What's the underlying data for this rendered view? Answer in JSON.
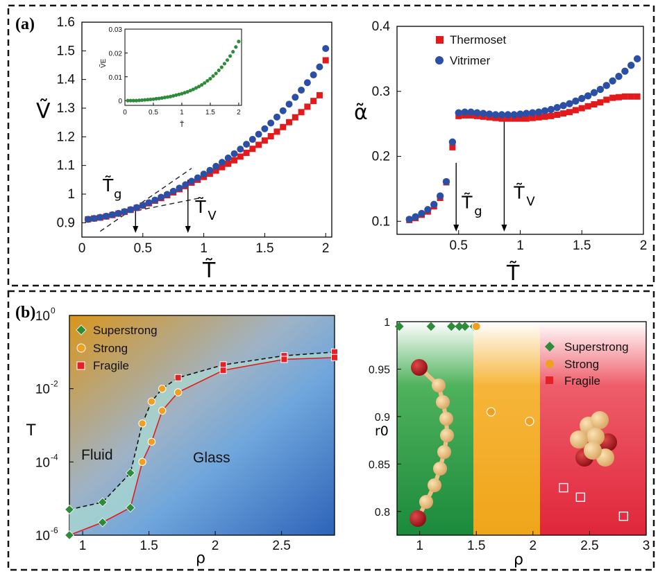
{
  "panels": {
    "a": "(a)",
    "b": "(b)"
  },
  "colors": {
    "thermoset": "#e31a1c",
    "vitrimer": "#2c4fa6",
    "inset": "#2e8b3a",
    "superstrong": "#2e8b3a",
    "strong": "#f0a020",
    "fragile": "#e52126"
  },
  "chart_data": [
    {
      "id": "a-left",
      "type": "scatter",
      "xlabel": "T̃",
      "ylabel": "Ṽ",
      "xlim": [
        0,
        2.05
      ],
      "ylim": [
        0.85,
        1.6
      ],
      "xticks": [
        "0",
        "0.5",
        "1",
        "1.5",
        "2"
      ],
      "yticks": [
        "0.9",
        "1",
        "1.1",
        "1.2",
        "1.3",
        "1.4",
        "1.5",
        "1.6"
      ],
      "annotations": {
        "tg": "T̃",
        "tg_sub": "g",
        "tv": "T̃",
        "tv_sub": "V",
        "tg_x": 0.44,
        "tv_x": 0.87
      },
      "series": [
        {
          "key": "thermoset",
          "values_x": [
            0.05,
            0.1,
            0.15,
            0.2,
            0.25,
            0.3,
            0.35,
            0.4,
            0.45,
            0.5,
            0.55,
            0.6,
            0.65,
            0.7,
            0.75,
            0.8,
            0.85,
            0.9,
            0.95,
            1.0,
            1.05,
            1.1,
            1.15,
            1.2,
            1.25,
            1.3,
            1.35,
            1.4,
            1.45,
            1.5,
            1.55,
            1.6,
            1.65,
            1.7,
            1.75,
            1.8,
            1.85,
            1.9,
            1.95,
            2.0
          ],
          "values_y": [
            0.912,
            0.915,
            0.918,
            0.922,
            0.927,
            0.932,
            0.938,
            0.945,
            0.952,
            0.96,
            0.968,
            0.977,
            0.986,
            0.996,
            1.006,
            1.017,
            1.028,
            1.04,
            1.05,
            1.06,
            1.071,
            1.082,
            1.094,
            1.106,
            1.118,
            1.131,
            1.144,
            1.158,
            1.172,
            1.187,
            1.202,
            1.218,
            1.234,
            1.251,
            1.268,
            1.286,
            1.305,
            1.325,
            1.345,
            1.467
          ]
        },
        {
          "key": "vitrimer",
          "values_x": [
            0.05,
            0.1,
            0.15,
            0.2,
            0.25,
            0.3,
            0.35,
            0.4,
            0.45,
            0.5,
            0.55,
            0.6,
            0.65,
            0.7,
            0.75,
            0.8,
            0.85,
            0.9,
            0.95,
            1.0,
            1.05,
            1.1,
            1.15,
            1.2,
            1.25,
            1.3,
            1.35,
            1.4,
            1.45,
            1.5,
            1.55,
            1.6,
            1.65,
            1.7,
            1.75,
            1.8,
            1.85,
            1.9,
            1.95,
            2.0
          ],
          "values_y": [
            0.912,
            0.915,
            0.919,
            0.923,
            0.928,
            0.933,
            0.939,
            0.946,
            0.953,
            0.961,
            0.97,
            0.979,
            0.989,
            0.999,
            1.01,
            1.021,
            1.033,
            1.045,
            1.057,
            1.07,
            1.083,
            1.097,
            1.111,
            1.126,
            1.141,
            1.157,
            1.174,
            1.191,
            1.209,
            1.228,
            1.248,
            1.269,
            1.291,
            1.314,
            1.338,
            1.363,
            1.389,
            1.416,
            1.444,
            1.508
          ]
        }
      ]
    },
    {
      "id": "a-inset",
      "type": "scatter",
      "xlabel": "T̃",
      "ylabel": "ṼE",
      "xlim": [
        0,
        2.05
      ],
      "ylim": [
        -0.002,
        0.03
      ],
      "xticks": [
        "0",
        "0.5",
        "1",
        "1.5",
        "2"
      ],
      "yticks": [
        "0",
        "0.01",
        "0.02",
        "0.03"
      ],
      "series": [
        {
          "key": "inset",
          "values_x": [
            0.05,
            0.1,
            0.15,
            0.2,
            0.25,
            0.3,
            0.35,
            0.4,
            0.45,
            0.5,
            0.55,
            0.6,
            0.65,
            0.7,
            0.75,
            0.8,
            0.85,
            0.9,
            0.95,
            1.0,
            1.05,
            1.1,
            1.15,
            1.2,
            1.25,
            1.3,
            1.35,
            1.4,
            1.45,
            1.5,
            1.55,
            1.6,
            1.65,
            1.7,
            1.75,
            1.8,
            1.85,
            1.9,
            1.95,
            2.0
          ],
          "values_y": [
            0,
            0,
            0,
            0,
            0.0001,
            0.0002,
            0.0003,
            0.0004,
            0.0005,
            0.0006,
            0.0008,
            0.0009,
            0.0011,
            0.0013,
            0.0015,
            0.0017,
            0.002,
            0.0023,
            0.0026,
            0.0029,
            0.0033,
            0.0037,
            0.0042,
            0.0047,
            0.0053,
            0.0059,
            0.0066,
            0.0074,
            0.0083,
            0.0092,
            0.0103,
            0.0114,
            0.0127,
            0.014,
            0.0155,
            0.017,
            0.0187,
            0.0205,
            0.0225,
            0.0248
          ]
        }
      ]
    },
    {
      "id": "a-right",
      "type": "scatter",
      "xlabel": "T̃",
      "ylabel": "α̃",
      "xlim": [
        0,
        2.0
      ],
      "ylim": [
        0.08,
        0.4
      ],
      "xticks": [
        "0",
        "0.5",
        "1",
        "1.5",
        "2"
      ],
      "yticks": [
        "0.1",
        "0.2",
        "0.3",
        "0.4"
      ],
      "legend": [
        "Thermoset",
        "Vitrimer"
      ],
      "annotations": {
        "tg": "T̃",
        "tg_sub": "g",
        "tv": "T̃",
        "tv_sub": "V",
        "tg_x": 0.48,
        "tv_x": 0.87
      },
      "series": [
        {
          "key": "thermoset",
          "values_x": [
            0.1,
            0.15,
            0.2,
            0.25,
            0.3,
            0.35,
            0.4,
            0.45,
            0.5,
            0.55,
            0.6,
            0.65,
            0.7,
            0.75,
            0.8,
            0.85,
            0.9,
            0.95,
            1.0,
            1.05,
            1.1,
            1.15,
            1.2,
            1.25,
            1.3,
            1.35,
            1.4,
            1.45,
            1.5,
            1.55,
            1.6,
            1.65,
            1.7,
            1.75,
            1.8,
            1.85,
            1.9,
            1.95
          ],
          "values_y": [
            0.102,
            0.105,
            0.11,
            0.115,
            0.123,
            0.136,
            0.16,
            0.214,
            0.262,
            0.263,
            0.263,
            0.262,
            0.261,
            0.26,
            0.259,
            0.258,
            0.258,
            0.258,
            0.258,
            0.258,
            0.259,
            0.26,
            0.261,
            0.262,
            0.264,
            0.266,
            0.268,
            0.271,
            0.274,
            0.277,
            0.28,
            0.283,
            0.287,
            0.29,
            0.291,
            0.292,
            0.292,
            0.292
          ]
        },
        {
          "key": "vitrimer",
          "values_x": [
            0.1,
            0.15,
            0.2,
            0.25,
            0.3,
            0.35,
            0.4,
            0.45,
            0.5,
            0.55,
            0.6,
            0.65,
            0.7,
            0.75,
            0.8,
            0.85,
            0.9,
            0.95,
            1.0,
            1.05,
            1.1,
            1.15,
            1.2,
            1.25,
            1.3,
            1.35,
            1.4,
            1.45,
            1.5,
            1.55,
            1.6,
            1.65,
            1.7,
            1.75,
            1.8,
            1.85,
            1.9,
            1.95
          ],
          "values_y": [
            0.103,
            0.107,
            0.112,
            0.118,
            0.126,
            0.139,
            0.161,
            0.222,
            0.267,
            0.268,
            0.268,
            0.267,
            0.266,
            0.265,
            0.264,
            0.264,
            0.264,
            0.264,
            0.265,
            0.266,
            0.267,
            0.268,
            0.27,
            0.272,
            0.275,
            0.278,
            0.281,
            0.285,
            0.289,
            0.293,
            0.298,
            0.303,
            0.309,
            0.316,
            0.323,
            0.331,
            0.34,
            0.35
          ]
        }
      ]
    },
    {
      "id": "b-left",
      "type": "scatter",
      "xlabel": "ρ",
      "ylabel": "T",
      "xlim": [
        0.9,
        2.9
      ],
      "ylim_log10": [
        -6,
        0
      ],
      "xticks": [
        "1",
        "1.5",
        "2",
        "2.5"
      ],
      "yticks": [
        {
          "base": "10",
          "exp": "0"
        },
        {
          "base": "10",
          "exp": "-2"
        },
        {
          "base": "10",
          "exp": "-4"
        },
        {
          "base": "10",
          "exp": "-6"
        }
      ],
      "legend": [
        "Superstrong",
        "Strong",
        "Fragile"
      ],
      "regions": {
        "fluid": "Fluid",
        "glass": "Glass"
      },
      "series": [
        {
          "key": "upper",
          "x": [
            0.9,
            1.15,
            1.36,
            1.45,
            1.52,
            1.6,
            1.72,
            2.06,
            2.52,
            2.9
          ],
          "logT": [
            -5.3,
            -5.1,
            -4.3,
            -2.95,
            -2.35,
            -2.0,
            -1.7,
            -1.35,
            -1.1,
            -1.0
          ],
          "markers": [
            "superstrong",
            "superstrong",
            "superstrong",
            "strong",
            "strong",
            "strong",
            "fragile",
            "fragile",
            "fragile",
            "fragile"
          ]
        },
        {
          "key": "lower",
          "x": [
            0.9,
            1.15,
            1.36,
            1.45,
            1.52,
            1.6,
            1.72,
            2.06,
            2.52,
            2.9
          ],
          "logT": [
            -6.0,
            -5.65,
            -5.25,
            -4.0,
            -3.45,
            -2.6,
            -2.1,
            -1.5,
            -1.2,
            -1.15
          ],
          "markers": [
            "superstrong",
            "superstrong",
            "superstrong",
            "strong",
            "strong",
            "strong",
            "strong",
            "fragile",
            "fragile",
            "fragile"
          ]
        }
      ]
    },
    {
      "id": "b-right",
      "type": "scatter",
      "xlabel": "ρ",
      "ylabel": "r0",
      "xlim": [
        0.8,
        3.0
      ],
      "ylim": [
        0.775,
        1.0
      ],
      "xticks": [
        "1",
        "1.5",
        "2",
        "2.5",
        "3"
      ],
      "yticks": [
        "0.8",
        "0.85",
        "0.9",
        "0.95",
        "1"
      ],
      "legend": [
        "Superstrong",
        "Strong",
        "Fragile"
      ],
      "series": [
        {
          "key": "superstrong",
          "x": [
            0.82,
            1.1,
            1.28,
            1.35,
            1.4,
            1.48
          ],
          "y": [
            0.995,
            0.995,
            0.995,
            0.995,
            0.995,
            0.995
          ]
        },
        {
          "key": "strong",
          "x": [
            1.5,
            1.63,
            1.97
          ],
          "y": [
            0.995,
            0.905,
            0.895
          ]
        },
        {
          "key": "fragile",
          "x": [
            2.27,
            2.42,
            2.8
          ],
          "y": [
            0.825,
            0.815,
            0.795
          ]
        }
      ]
    }
  ]
}
